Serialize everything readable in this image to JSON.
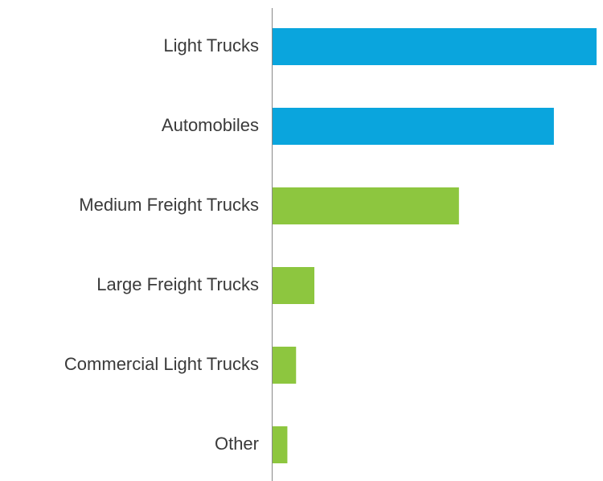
{
  "chart_data": {
    "type": "hbar",
    "categories": [
      "Light Trucks",
      "Automobiles",
      "Medium Freight Trucks",
      "Large Freight Trucks",
      "Commercial Light Trucks",
      "Other"
    ],
    "values": [
      37.2,
      32.3,
      21.4,
      4.8,
      2.7,
      1.7
    ],
    "colors": [
      "#0aa5dd",
      "#0aa5dd",
      "#8dc63f",
      "#8dc63f",
      "#8dc63f",
      "#8dc63f"
    ],
    "xlim": [
      0,
      37.2
    ]
  }
}
